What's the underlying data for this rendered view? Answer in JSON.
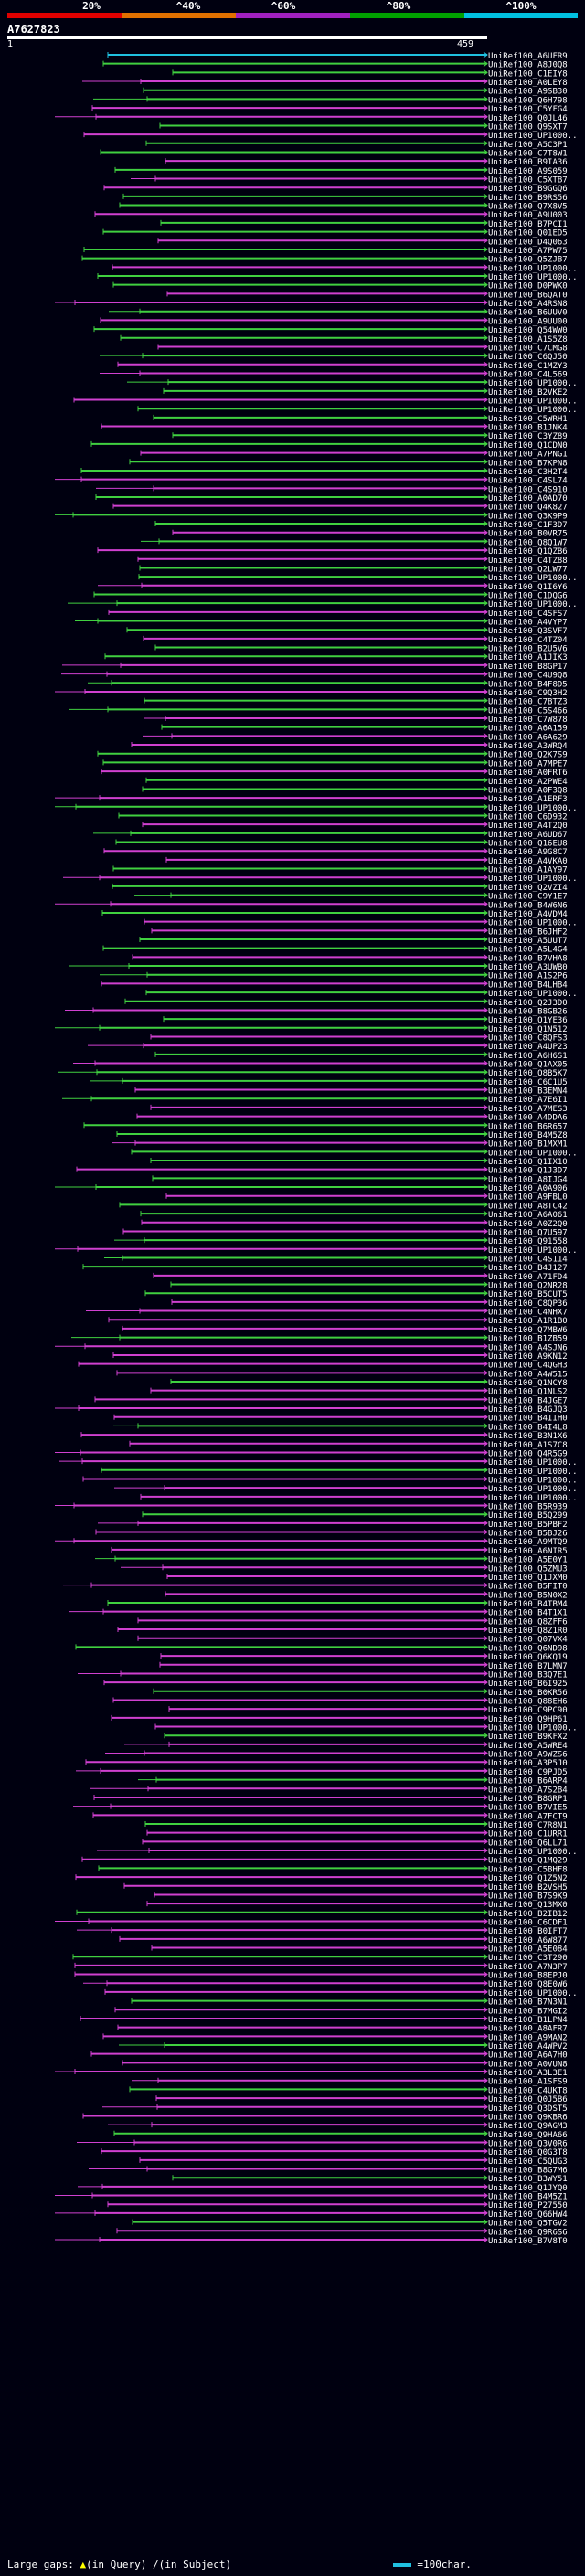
{
  "query": {
    "id": "A7627823",
    "start": "1",
    "end": "459"
  },
  "legend": {
    "labels": [
      "20%",
      "^40%",
      "^60%",
      "^80%",
      "^100%"
    ],
    "colors": [
      "#e00000",
      "#e07000",
      "#a020c0",
      "#00a000",
      "#00c0e0"
    ]
  },
  "colors": {
    "cyan": "#20c0e0",
    "green": "#40d040",
    "magenta": "#d040d0",
    "label": "#ffffff",
    "insert": "#ffff00",
    "del": "#ffffff"
  },
  "footer": {
    "prefix": "Large gaps:",
    "insert_sym": "▲",
    "insert_text": "(in Query)",
    "delete_sym": "/",
    "delete_text": "(in Subject)",
    "scale_text": "=100char."
  },
  "hits": [
    "UniRef100_A6UFR9",
    "UniRef100_A8J0Q8",
    "UniRef100_C1EIY8",
    "UniRef100_A0LEY8",
    "UniRef100_A9SB30",
    "UniRef100_Q6H798",
    "UniRef100_C5YFG4",
    "UniRef100_Q0JL46",
    "UniRef100_Q9SXT7",
    "UniRef100_UP1000..",
    "UniRef100_A5C3P1",
    "UniRef100_C7T8W1",
    "UniRef100_B9IA36",
    "UniRef100_A9S059",
    "UniRef100_C5XTB7",
    "UniRef100_B9GGQ6",
    "UniRef100_B9RS56",
    "UniRef100_Q7X8V5",
    "UniRef100_A9U003",
    "UniRef100_B7PCI1",
    "UniRef100_Q01ED5",
    "UniRef100_D4Q063",
    "UniRef100_A7PW75",
    "UniRef100_Q5ZJB7",
    "UniRef100_UP1000..",
    "UniRef100_UP1000..",
    "UniRef100_D0PWK0",
    "UniRef100_B6QAT0",
    "UniRef100_A4RSN8",
    "UniRef100_B6UUV0",
    "UniRef100_A9UU00",
    "UniRef100_Q54WW0",
    "UniRef100_A1S5Z8",
    "UniRef100_C7CMG8",
    "UniRef100_C6QJ50",
    "UniRef100_C1MZY3",
    "UniRef100_C4L569",
    "UniRef100_UP1000..",
    "UniRef100_B2VKE2",
    "UniRef100_UP1000..",
    "UniRef100_UP1000..",
    "UniRef100_C5WRH1",
    "UniRef100_B1JNK4",
    "UniRef100_C3YZ89",
    "UniRef100_Q1CDN0",
    "UniRef100_A7PNG1",
    "UniRef100_B7KPN8",
    "UniRef100_C3H2T4",
    "UniRef100_C4SL74",
    "UniRef100_C4S910",
    "UniRef100_A0AD70",
    "UniRef100_Q4K827",
    "UniRef100_Q3K9P9",
    "UniRef100_C1F3D7",
    "UniRef100_B0VR75",
    "UniRef100_Q8Q1W7",
    "UniRef100_Q1QZB6",
    "UniRef100_C4TZ88",
    "UniRef100_Q2LW77",
    "UniRef100_UP1000..",
    "UniRef100_Q1I6Y6",
    "UniRef100_C1DQG6",
    "UniRef100_UP1000..",
    "UniRef100_C4SFS7",
    "UniRef100_A4VYP7",
    "UniRef100_Q3SVF7",
    "UniRef100_C4TZ04",
    "UniRef100_B2U5V6",
    "UniRef100_A1JIK3",
    "UniRef100_B8GP17",
    "UniRef100_C4U9Q8",
    "UniRef100_B4F8D5",
    "UniRef100_C9Q3H2",
    "UniRef100_C7BTZ3",
    "UniRef100_C5S466",
    "UniRef100_C7W878",
    "UniRef100_A6A159",
    "UniRef100_A6A629",
    "UniRef100_A3WRQ4",
    "UniRef100_Q2K7S9",
    "UniRef100_A7MPE7",
    "UniRef100_A0FRT6",
    "UniRef100_A2PWE4",
    "UniRef100_A0F3Q8",
    "UniRef100_A1ERF3",
    "UniRef100_UP1000..",
    "UniRef100_C6D932",
    "UniRef100_A4T2Q0",
    "UniRef100_A6UD67",
    "UniRef100_Q16EU8",
    "UniRef100_A9G8C7",
    "UniRef100_A4VKA0",
    "UniRef100_A1AY97",
    "UniRef100_UP1000..",
    "UniRef100_Q2VZI4",
    "UniRef100_C9Y1E7",
    "UniRef100_B4W6N6",
    "UniRef100_A4VDM4",
    "UniRef100_UP1000..",
    "UniRef100_B6JHF2",
    "UniRef100_A5UUT7",
    "UniRef100_A5L4G4",
    "UniRef100_B7VHA8",
    "UniRef100_A3UWB0",
    "UniRef100_A1S2P6",
    "UniRef100_B4LHB4",
    "UniRef100_UP1000..",
    "UniRef100_Q2J3D0",
    "UniRef100_B8GB26",
    "UniRef100_Q1YE36",
    "UniRef100_Q1N512",
    "UniRef100_C8QFS3",
    "UniRef100_A4UP23",
    "UniRef100_A6H6S1",
    "UniRef100_Q1AX05",
    "UniRef100_Q8B5K7",
    "UniRef100_C6C1U5",
    "UniRef100_B3EMN4",
    "UniRef100_A7E6I1",
    "UniRef100_A7MES3",
    "UniRef100_A4DDA6",
    "UniRef100_B6R657",
    "UniRef100_B4M5Z8",
    "UniRef100_B1MXM1",
    "UniRef100_UP1000..",
    "UniRef100_Q1IX10",
    "UniRef100_Q1J3D7",
    "UniRef100_A8IJG4",
    "UniRef100_A0A906",
    "UniRef100_A9FBL0",
    "UniRef100_A8TC42",
    "UniRef100_A6A061",
    "UniRef100_A0Z2Q0",
    "UniRef100_Q7U597",
    "UniRef100_Q91558",
    "UniRef100_UP1000..",
    "UniRef100_C4S114",
    "UniRef100_B4J127",
    "UniRef100_A71FD4",
    "UniRef100_Q2NR28",
    "UniRef100_B5CUT5",
    "UniRef100_C8QP36",
    "UniRef100_C4NHX7",
    "UniRef100_A1R1B0",
    "UniRef100_Q7MBW6",
    "UniRef100_B1ZB59",
    "UniRef100_A4SJN6",
    "UniRef100_A9KN12",
    "UniRef100_C4QGH3",
    "UniRef100_A4W515",
    "UniRef100_Q1NCY8",
    "UniRef100_Q1NLS2",
    "UniRef100_B4JGE7",
    "UniRef100_B4GJQ3",
    "UniRef100_B4IIH0",
    "UniRef100_B4I4L8",
    "UniRef100_B3N1X6",
    "UniRef100_A1S7C8",
    "UniRef100_Q4R5G9",
    "UniRef100_UP1000..",
    "UniRef100_UP1000..",
    "UniRef100_UP1000..",
    "UniRef100_UP1000..",
    "UniRef100_UP1000..",
    "UniRef100_B5R939",
    "UniRef100_B5Q299",
    "UniRef100_B5PBF2",
    "UniRef100_B5BJ26",
    "UniRef100_A9MTQ9",
    "UniRef100_A6NIR5",
    "UniRef100_A5E0Y1",
    "UniRef100_Q5ZMU3",
    "UniRef100_Q1JXM0",
    "UniRef100_B5FIT0",
    "UniRef100_B5N0X2",
    "UniRef100_B4TBM4",
    "UniRef100_B4T1X1",
    "UniRef100_Q8ZFF6",
    "UniRef100_Q8Z1R0",
    "UniRef100_Q07VX4",
    "UniRef100_Q6ND98",
    "UniRef100_Q6KQ19",
    "UniRef100_B7LMN7",
    "UniRef100_B3Q7E1",
    "UniRef100_B6I925",
    "UniRef100_B0KR56",
    "UniRef100_Q88EH6",
    "UniRef100_C9PC90",
    "UniRef100_Q9HP61",
    "UniRef100_UP1000..",
    "UniRef100_B9KFX2",
    "UniRef100_A5WRE4",
    "UniRef100_A9WZS6",
    "UniRef100_A3P5J0",
    "UniRef100_C9PJD5",
    "UniRef100_B6ARP4",
    "UniRef100_A7S2B4",
    "UniRef100_B8GRP1",
    "UniRef100_B7VIE5",
    "UniRef100_A7FCT9",
    "UniRef100_C7R8N1",
    "UniRef100_C1URR1",
    "UniRef100_Q6LL71",
    "UniRef100_UP1000..",
    "UniRef100_Q1MQ29",
    "UniRef100_C5BHF8",
    "UniRef100_Q1Z5N2",
    "UniRef100_B2VSH5",
    "UniRef100_B7S9K9",
    "UniRef100_Q13MX0",
    "UniRef100_B2IB12",
    "UniRef100_C6CDF1",
    "UniRef100_B0IFT7",
    "UniRef100_A6W877",
    "UniRef100_A5E084",
    "UniRef100_C3T290",
    "UniRef100_A7N3P7",
    "UniRef100_B8EPJ0",
    "UniRef100_Q8E0W6",
    "UniRef100_UP1000..",
    "UniRef100_B7N3N1",
    "UniRef100_B7MGI2",
    "UniRef100_B1LPN4",
    "UniRef100_A8AFR7",
    "UniRef100_A9MAN2",
    "UniRef100_A4WPV2",
    "UniRef100_A6A7H0",
    "UniRef100_A0VUN8",
    "UniRef100_A3L3E1",
    "UniRef100_A1SFS9",
    "UniRef100_C4UKT8",
    "UniRef100_Q0J5B6",
    "UniRef100_Q3DST5",
    "UniRef100_Q9KBR6",
    "UniRef100_Q9AGM3",
    "UniRef100_Q9HA66",
    "UniRef100_Q3V0R6",
    "UniRef100_Q0G3T8",
    "UniRef100_C5QUG3",
    "UniRef100_B8G7M6",
    "UniRef100_B3WY51",
    "UniRef100_Q1JYQ0",
    "UniRef100_B4M5Z1",
    "UniRef100_P27550",
    "UniRef100_Q66HW4",
    "UniRef100_Q5TGV2",
    "UniRef100_Q9R6S6",
    "UniRef100_B7V8T0"
  ]
}
